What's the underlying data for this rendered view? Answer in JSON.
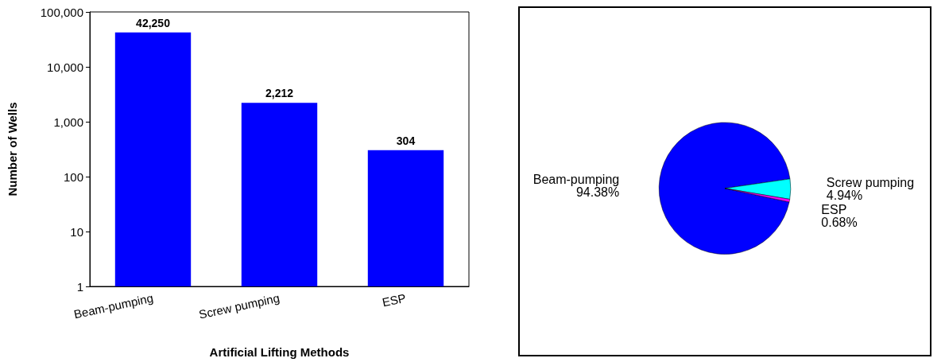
{
  "chart_data": [
    {
      "type": "bar",
      "xlabel": "Artificial Lifting Methods",
      "ylabel": "Number of Wells",
      "categories": [
        "Beam-pumping",
        "Screw pumping",
        "ESP"
      ],
      "values": [
        42250,
        2212,
        304
      ],
      "value_labels": [
        "42,250",
        "2,212",
        "304"
      ],
      "color": "#0000ff",
      "log": true,
      "ylim": [
        1,
        100000
      ],
      "yticks": [
        1,
        10,
        100,
        {
          "value": 1000,
          "label": "1,000"
        },
        {
          "value": 10000,
          "label": "10,000"
        },
        {
          "value": 100000,
          "label": "100,000"
        }
      ],
      "grid": false,
      "legend": false
    },
    {
      "type": "pie",
      "categories": [
        "Beam-pumping",
        "Screw pumping",
        "ESP"
      ],
      "values": [
        94.38,
        4.94,
        0.68
      ],
      "colors": [
        "#0000ff",
        "#00ffff",
        "#ff00ff"
      ],
      "value_labels": [
        "94.38%",
        "4.94%",
        "0.68%"
      ],
      "legend": false
    }
  ]
}
